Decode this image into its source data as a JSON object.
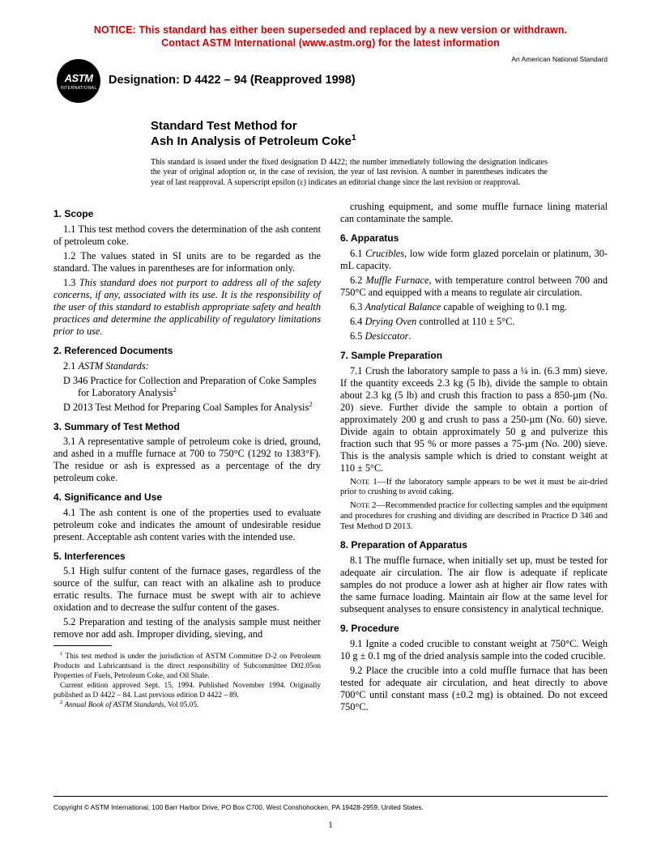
{
  "notice": {
    "line1": "NOTICE: This standard has either been superseded and replaced by a new version or withdrawn.",
    "line2": "Contact ASTM International (www.astm.org) for the latest information"
  },
  "logo": {
    "top": "ASTM",
    "bottom": "INTERNATIONAL"
  },
  "designation": "Designation: D 4422 – 94 (Reapproved 1998)",
  "ans_note": "An American National Standard",
  "title": {
    "line1": "Standard Test Method for",
    "line2_pre": "Ash In Analysis of Petroleum Coke",
    "line2_sup": "1"
  },
  "issue_note": "This standard is issued under the fixed designation D 4422; the number immediately following the designation indicates the year of original adoption or, in the case of revision, the year of last revision. A number in parentheses indicates the year of last reapproval. A superscript epsilon (ε) indicates an editorial change since the last revision or reapproval.",
  "s1": {
    "head": "1.  Scope",
    "p1": "1.1 This test method covers the determination of the ash content of petroleum coke.",
    "p2": "1.2 The values stated in SI units are to be regarded as the standard. The values in parentheses are for information only.",
    "p3_pre": "1.3 ",
    "p3_ital": "This standard does not purport to address all of the safety concerns, if any, associated with its use. It is the responsibility of the user of this standard to establish appropriate safety and health practices and determine the applicability of regulatory limitations prior to use."
  },
  "s2": {
    "head": "2.  Referenced Documents",
    "p1_pre": "2.1 ",
    "p1_ital": "ASTM Standards:",
    "d346": "D 346  Practice for Collection and Preparation of Coke Samples for Laboratory Analysis",
    "d2013": "D 2013  Test Method for Preparing Coal Samples for Analysis",
    "sup2": "2"
  },
  "s3": {
    "head": "3.  Summary of Test Method",
    "p1": "3.1 A representative sample of petroleum coke is dried, ground, and ashed in a muffle furnace at 700 to 750°C (1292 to 1383°F). The residue or ash is expressed as a percentage of the dry petroleum coke."
  },
  "s4": {
    "head": "4.  Significance and Use",
    "p1": "4.1 The ash content is one of the properties used to evaluate petroleum coke and indicates the amount of undesirable residue present. Acceptable ash content varies with the intended use."
  },
  "s5": {
    "head": "5.  Interferences",
    "p1": "5.1 High sulfur content of the furnace gases, regardless of the source of the sulfur, can react with an alkaline ash to produce erratic results. The furnace must be swept with air to achieve oxidation and to decrease the sulfur content of the gases.",
    "p2": "5.2 Preparation and testing of the analysis sample must neither remove nor add ash. Improper dividing, sieving, and",
    "p2_cont": "crushing equipment, and some muffle furnace lining material can contaminate the sample."
  },
  "s6": {
    "head": "6.  Apparatus",
    "p1_pre": "6.1 ",
    "p1_ital": "Crucibles",
    "p1_post": ", low wide form glazed porcelain or platinum, 30-mL capacity.",
    "p2_pre": "6.2 ",
    "p2_ital": "Muffle Furnace",
    "p2_post": ", with temperature control between 700 and 750°C and equipped with a means to regulate air circulation.",
    "p3_pre": "6.3 ",
    "p3_ital": "Analytical Balance",
    "p3_post": "  capable of weighing to 0.1 mg.",
    "p4_pre": "6.4 ",
    "p4_ital": "Drying Oven",
    "p4_post": "  controlled at 110 ± 5°C.",
    "p5_pre": "6.5 ",
    "p5_ital": "Desiccator",
    "p5_post": "."
  },
  "s7": {
    "head": "7.  Sample Preparation",
    "p1": "7.1 Crush the laboratory sample to pass a ¼ in. (6.3 mm) sieve. If the quantity exceeds 2.3 kg (5 lb), divide the sample to obtain about 2.3 kg (5 lb) and crush this fraction to pass a 850-µm (No. 20) sieve. Further divide the sample to obtain a portion of approximately 200 g and crush to pass a 250-µm (No. 60) sieve. Divide again to obtain approximately 50 g and pulverize this fraction such that 95 % or more passes a 75-µm (No. 200) sieve. This is the analysis sample which is dried to constant weight at 110 ± 5°C.",
    "n1_lead": "Note 1—",
    "n1": "If the laboratory sample appears to be wet it must be air-dried prior to crushing to avoid caking.",
    "n2_lead": "Note 2—",
    "n2": "Recommended practice for collecting samples and the equipment and procedures for crushing and dividing are described in Practice D 346 and Test Method D 2013."
  },
  "s8": {
    "head": "8.  Preparation of Apparatus",
    "p1": "8.1 The muffle furnace, when initially set up, must be tested for adequate air circulation. The air flow is adequate if replicate samples do not produce a lower ash at higher air flow rates with the same furnace loading. Maintain air flow at the same level for subsequent analyses to ensure consistency in analytical technique."
  },
  "s9": {
    "head": "9.  Procedure",
    "p1": "9.1 Ignite a coded crucible to constant weight at 750°C. Weigh 10 g ± 0.1 mg of the dried analysis sample into the coded crucible.",
    "p2": "9.2 Place the crucible into a cold muffle furnace that has been tested for adequate air circulation, and heat directly to above 700°C until constant mass (±0.2 mg) is obtained. Do not exceed 750°C."
  },
  "footnotes": {
    "f1": "This test method is under the jurisdiction of ASTM Committee D-2 on Petroleum Products and Lubricantsand is the direct responsibility of Subcommittee D02.05on Properties of Fuels, Petroleum Coke, and Oil Shale.",
    "f1b": "Current edition approved Sept. 15, 1994. Published November 1994. Originally published as D 4422 – 84. Last previous edition D 4422 – 89.",
    "f2_ital": "Annual Book of ASTM Standards",
    "f2_post": ", Vol 05.05."
  },
  "copyright": "Copyright © ASTM International, 100 Barr Harbor Drive, PO Box C700, West Conshohocken, PA 19428-2959, United States.",
  "pagenum": "1"
}
